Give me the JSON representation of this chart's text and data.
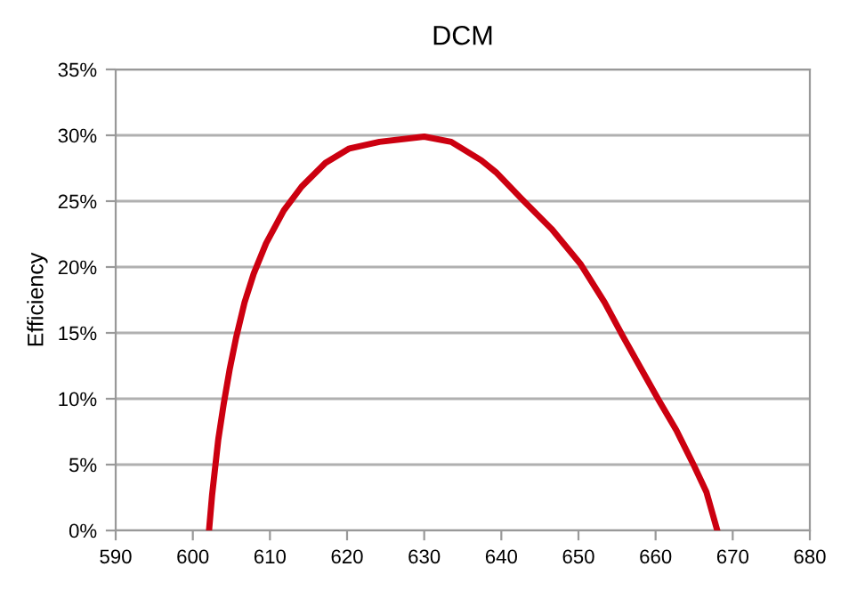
{
  "chart_data": {
    "type": "line",
    "title": "DCM",
    "ylabel": "Efficiency",
    "series": [
      {
        "color": "#cc0010",
        "x": [
          602.1,
          602.5,
          603.3,
          604.0,
          604.8,
          605.6,
          606.7,
          607.9,
          609.5,
          611.8,
          614.1,
          617.2,
          620.3,
          624.2,
          630.0,
          633.5,
          637.4,
          639.3,
          642.6,
          646.5,
          650.3,
          653.4,
          655.7,
          658.1,
          660.4,
          662.7,
          665.0,
          666.6,
          668.0
        ],
        "values": [
          0,
          2.7,
          6.9,
          9.6,
          12.3,
          14.6,
          17.3,
          19.5,
          21.8,
          24.3,
          26.1,
          27.9,
          29.0,
          29.5,
          29.9,
          29.5,
          28.1,
          27.2,
          25.2,
          22.9,
          20.2,
          17.3,
          14.8,
          12.3,
          9.9,
          7.6,
          4.9,
          2.9,
          0
        ]
      }
    ],
    "xlim": [
      590,
      680
    ],
    "xticks": [
      590,
      600,
      610,
      620,
      630,
      640,
      650,
      660,
      670,
      680
    ],
    "ylim": [
      0,
      35
    ],
    "yticks": [
      {
        "value": 0,
        "label": "0%"
      },
      {
        "value": 5,
        "label": "5%"
      },
      {
        "value": 10,
        "label": "10%"
      },
      {
        "value": 15,
        "label": "15%"
      },
      {
        "value": 20,
        "label": "20%"
      },
      {
        "value": 25,
        "label": "25%"
      },
      {
        "value": 30,
        "label": "30%"
      },
      {
        "value": 35,
        "label": "35%"
      }
    ],
    "grid": "y",
    "marker": "none",
    "line_style": "solid"
  }
}
